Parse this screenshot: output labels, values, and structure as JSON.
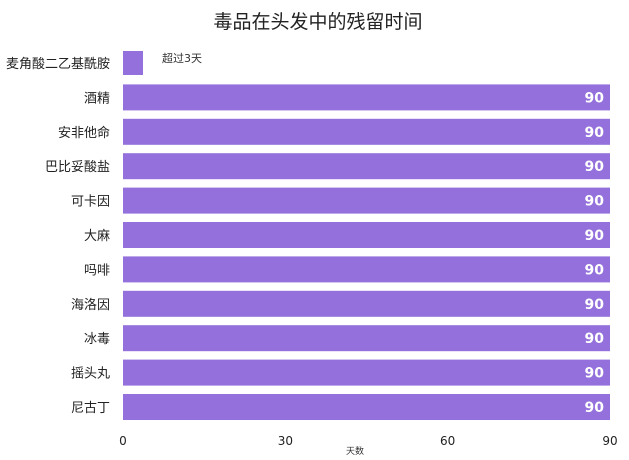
{
  "chart_data": {
    "type": "bar",
    "orientation": "horizontal",
    "title": "毒品在头发中的残留时间",
    "xlabel": "天数",
    "ylabel": "",
    "categories": [
      "麦角酸二乙基酰胺",
      "酒精",
      "安非他命",
      "巴比妥酸盐",
      "可卡因",
      "大麻",
      "吗啡",
      "海洛因",
      "冰毒",
      "摇头丸",
      "尼古丁"
    ],
    "series": [
      {
        "name": "超过3天",
        "values": [
          0,
          90,
          90,
          90,
          90,
          90,
          90,
          90,
          90,
          90,
          90
        ],
        "color": "#9370db"
      }
    ],
    "xlim": [
      0,
      90
    ],
    "xticks": [
      0,
      30,
      60,
      90
    ],
    "data_labels": [
      "",
      "90",
      "90",
      "90",
      "90",
      "90",
      "90",
      "90",
      "90",
      "90",
      "90"
    ],
    "legend_position": "top-left",
    "grid": false
  }
}
